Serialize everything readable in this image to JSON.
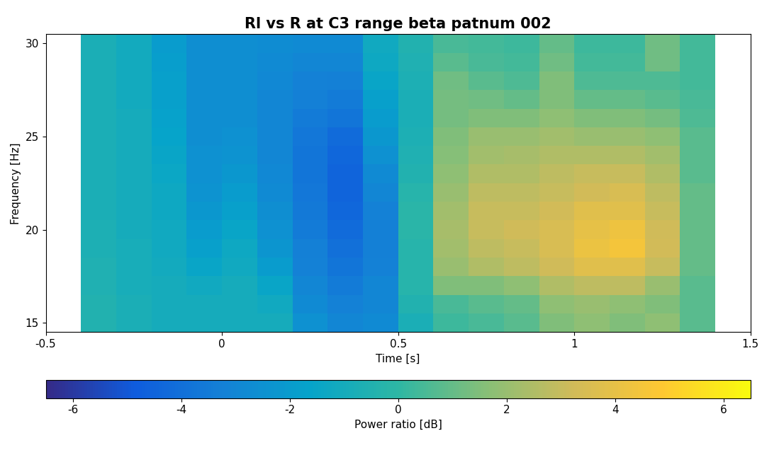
{
  "chart_data": {
    "type": "heatmap",
    "title": "Rl vs R at C3 range beta patnum 002",
    "x_label": "Time [s]",
    "y_label": "Frequency [Hz]",
    "x": [
      -0.35,
      -0.25,
      -0.15,
      -0.05,
      0.05,
      0.15,
      0.25,
      0.35,
      0.45,
      0.55,
      0.65,
      0.75,
      0.85,
      0.95,
      1.05,
      1.15,
      1.25,
      1.35
    ],
    "y": [
      15,
      16,
      17,
      18,
      19,
      20,
      21,
      22,
      23,
      24,
      25,
      26,
      27,
      28,
      29,
      30
    ],
    "cells": [
      [
        -0.5,
        -0.8,
        -1.0,
        -1.0,
        -1.0,
        -1.0,
        -2.5,
        -3.0,
        -2.8,
        -0.8,
        0.3,
        0.5,
        0.8,
        1.5,
        1.8,
        1.5,
        1.8,
        0.8
      ],
      [
        -0.5,
        -0.8,
        -1.0,
        -1.0,
        -1.0,
        -1.2,
        -2.8,
        -3.2,
        -3.0,
        -0.5,
        0.5,
        0.8,
        1.0,
        1.8,
        2.0,
        1.8,
        1.5,
        0.8
      ],
      [
        -0.6,
        -0.9,
        -1.0,
        -1.2,
        -1.0,
        -1.5,
        -3.0,
        -3.5,
        -3.0,
        -0.3,
        1.5,
        1.5,
        1.8,
        2.5,
        2.8,
        2.8,
        2.0,
        0.8
      ],
      [
        -0.6,
        -0.9,
        -1.1,
        -1.5,
        -1.2,
        -2.0,
        -3.2,
        -3.8,
        -3.2,
        -0.3,
        2.0,
        2.5,
        2.8,
        3.2,
        3.8,
        3.8,
        3.0,
        1.0
      ],
      [
        -0.7,
        -0.9,
        -1.2,
        -1.8,
        -1.3,
        -2.3,
        -3.3,
        -4.0,
        -3.3,
        -0.3,
        2.2,
        2.8,
        3.0,
        3.5,
        4.2,
        4.5,
        3.3,
        1.0
      ],
      [
        -0.7,
        -1.0,
        -1.2,
        -2.0,
        -1.5,
        -2.5,
        -3.5,
        -4.2,
        -3.3,
        -0.2,
        2.3,
        3.0,
        3.2,
        3.5,
        4.0,
        4.3,
        3.2,
        1.0
      ],
      [
        -0.8,
        -1.0,
        -1.3,
        -2.2,
        -1.8,
        -2.6,
        -3.6,
        -4.4,
        -3.2,
        -0.2,
        2.2,
        3.0,
        3.0,
        3.3,
        3.8,
        3.8,
        3.0,
        1.0
      ],
      [
        -0.8,
        -1.0,
        -1.3,
        -2.4,
        -2.0,
        -2.8,
        -3.7,
        -4.5,
        -3.0,
        -0.3,
        2.0,
        2.8,
        2.8,
        3.0,
        3.3,
        3.5,
        2.8,
        1.0
      ],
      [
        -0.8,
        -1.0,
        -1.4,
        -2.5,
        -2.2,
        -2.9,
        -3.8,
        -4.5,
        -2.8,
        -0.5,
        1.8,
        2.5,
        2.5,
        2.8,
        3.0,
        3.0,
        2.5,
        0.8
      ],
      [
        -0.8,
        -1.0,
        -1.5,
        -2.5,
        -2.4,
        -3.0,
        -3.8,
        -4.4,
        -2.5,
        -0.6,
        1.6,
        2.2,
        2.3,
        2.5,
        2.5,
        2.5,
        2.2,
        0.8
      ],
      [
        -0.8,
        -1.0,
        -1.6,
        -2.6,
        -2.5,
        -3.0,
        -3.7,
        -4.2,
        -2.2,
        -0.7,
        1.5,
        2.0,
        2.0,
        2.2,
        2.0,
        2.0,
        1.8,
        0.8
      ],
      [
        -0.8,
        -1.0,
        -1.7,
        -2.6,
        -2.6,
        -3.0,
        -3.5,
        -3.8,
        -2.0,
        -0.8,
        1.3,
        1.5,
        1.5,
        1.8,
        1.5,
        1.5,
        1.3,
        0.6
      ],
      [
        -0.8,
        -1.1,
        -1.8,
        -2.6,
        -2.6,
        -3.0,
        -3.3,
        -3.5,
        -1.8,
        -0.8,
        1.3,
        1.2,
        1.0,
        1.5,
        1.0,
        1.0,
        0.8,
        0.5
      ],
      [
        -0.8,
        -1.1,
        -1.8,
        -2.6,
        -2.6,
        -2.9,
        -3.2,
        -3.3,
        -1.5,
        -0.7,
        1.2,
        0.8,
        0.6,
        1.5,
        0.6,
        0.6,
        0.6,
        0.4
      ],
      [
        -0.8,
        -1.1,
        -1.9,
        -2.6,
        -2.6,
        -2.8,
        -3.0,
        -3.0,
        -1.3,
        -0.6,
        0.8,
        0.5,
        0.4,
        1.2,
        0.4,
        0.4,
        1.2,
        0.4
      ],
      [
        -0.8,
        -1.1,
        -2.0,
        -2.6,
        -2.6,
        -2.7,
        -2.8,
        -2.8,
        -1.2,
        -0.5,
        0.5,
        0.4,
        0.3,
        1.0,
        0.3,
        0.3,
        1.2,
        0.4
      ]
    ],
    "xlim": [
      -0.5,
      1.5
    ],
    "xticks": [
      -0.5,
      0,
      0.5,
      1,
      1.5
    ],
    "ylim": [
      14.5,
      30.5
    ],
    "yticks": [
      15,
      20,
      25,
      30
    ],
    "colorbar_label": "Power ratio [dB]",
    "colorbar_range": [
      -6.5,
      6.5
    ],
    "colorbar_ticks": [
      -6,
      -4,
      -2,
      0,
      2,
      4,
      6
    ]
  }
}
